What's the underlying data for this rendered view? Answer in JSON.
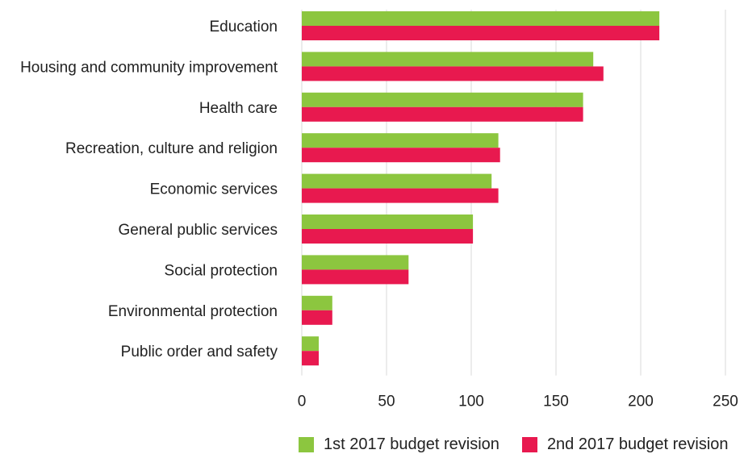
{
  "chart_data": {
    "type": "bar",
    "orientation": "horizontal",
    "title": "",
    "xlabel": "",
    "ylabel": "",
    "categories": [
      "Education",
      "Housing and community improvement",
      "Health care",
      "Recreation, culture and religion",
      "Economic services",
      "General public services",
      "Social protection",
      "Environmental protection",
      "Public order and safety"
    ],
    "series": [
      {
        "name": "1st 2017 budget revision",
        "color": "#8cc63f",
        "values": [
          211,
          172,
          166,
          116,
          112,
          101,
          63,
          18,
          10
        ]
      },
      {
        "name": "2nd 2017 budget revision",
        "color": "#e8194f",
        "values": [
          211,
          178,
          166,
          117,
          116,
          101,
          63,
          18,
          10
        ]
      }
    ],
    "xlim": [
      0,
      250
    ],
    "xticks": [
      "0",
      "50",
      "100",
      "150",
      "200",
      "250"
    ],
    "grid": "vertical",
    "legend_position": "bottom"
  }
}
